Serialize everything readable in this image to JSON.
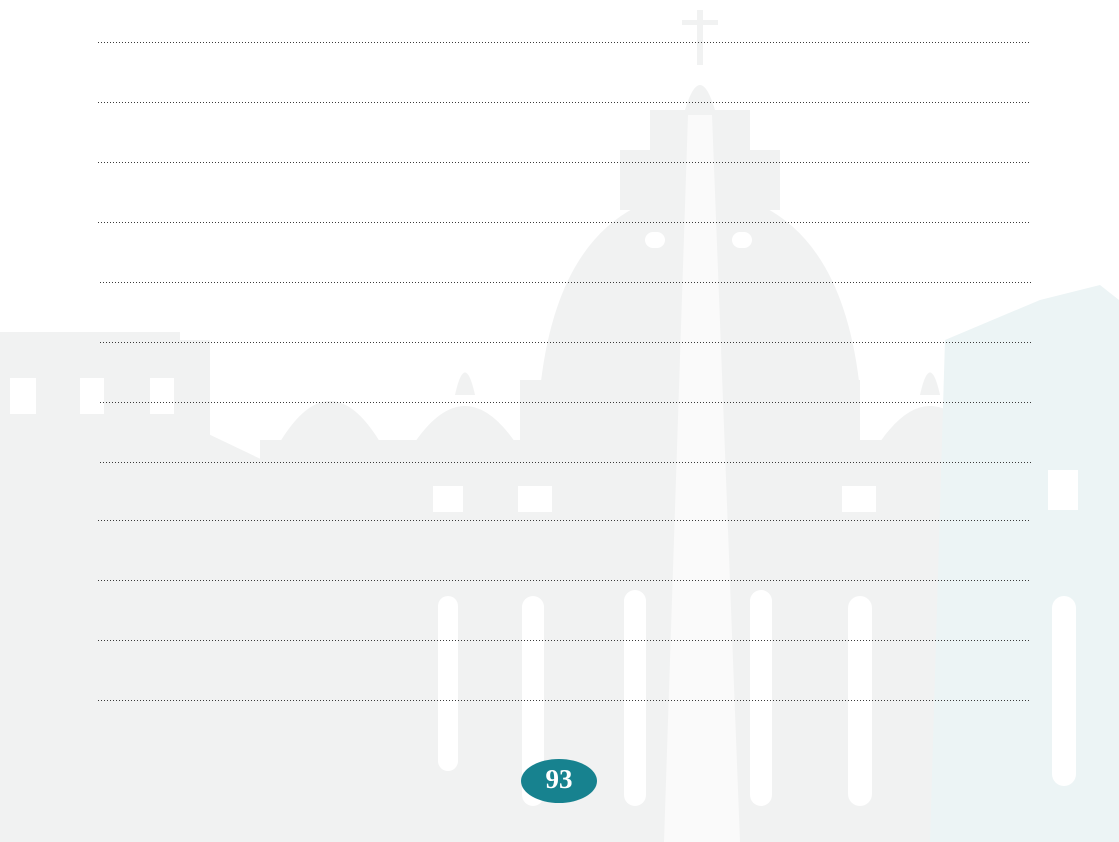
{
  "page_number": "93"
}
